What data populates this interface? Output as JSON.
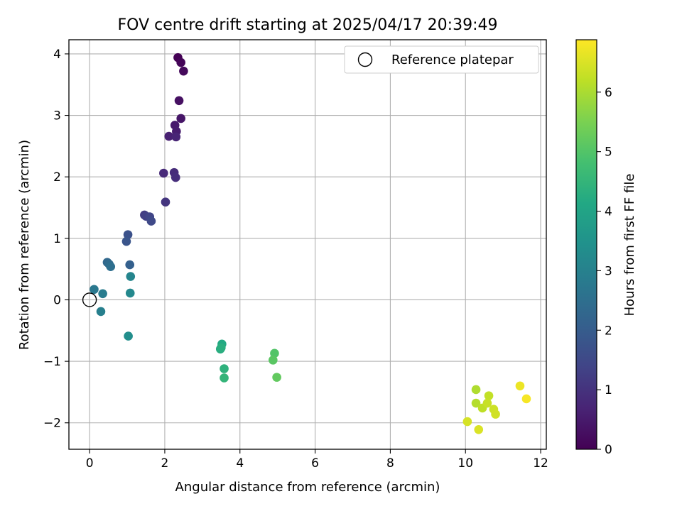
{
  "chart_data": {
    "type": "scatter",
    "title": "FOV centre drift starting at 2025/04/17 20:39:49",
    "xlabel": "Angular distance from reference (arcmin)",
    "ylabel": "Rotation from reference (arcmin)",
    "xlim": [
      -0.55,
      12.15
    ],
    "ylim": [
      -2.43,
      4.23
    ],
    "xticks": [
      0,
      2,
      4,
      6,
      8,
      10,
      12
    ],
    "yticks": [
      -2,
      -1,
      0,
      1,
      2,
      3,
      4
    ],
    "x_tick_labels": [
      "0",
      "2",
      "4",
      "6",
      "8",
      "10",
      "12"
    ],
    "y_tick_labels": [
      "−2",
      "−1",
      "0",
      "1",
      "2",
      "3",
      "4"
    ],
    "grid": true,
    "legend": {
      "placement": "upper-right",
      "entries": [
        "Reference platepar"
      ]
    },
    "reference_point": {
      "x": 0,
      "y": 0,
      "label": "Reference platepar"
    },
    "colorbar": {
      "label": "Hours from first FF file",
      "colormap": "viridis",
      "range": [
        0,
        6.88
      ],
      "ticks": [
        0,
        1,
        2,
        3,
        4,
        5,
        6
      ],
      "tick_labels": [
        "0",
        "1",
        "2",
        "3",
        "4",
        "5",
        "6"
      ]
    },
    "points": [
      {
        "x": 2.35,
        "y": 3.94,
        "c": 0.0
      },
      {
        "x": 2.43,
        "y": 3.86,
        "c": 0.08
      },
      {
        "x": 2.5,
        "y": 3.72,
        "c": 0.15
      },
      {
        "x": 2.38,
        "y": 3.24,
        "c": 0.3
      },
      {
        "x": 2.43,
        "y": 2.95,
        "c": 0.4
      },
      {
        "x": 2.27,
        "y": 2.84,
        "c": 0.5
      },
      {
        "x": 2.31,
        "y": 2.74,
        "c": 0.55
      },
      {
        "x": 2.11,
        "y": 2.66,
        "c": 0.62
      },
      {
        "x": 2.3,
        "y": 2.65,
        "c": 0.7
      },
      {
        "x": 1.97,
        "y": 2.06,
        "c": 0.8
      },
      {
        "x": 2.25,
        "y": 2.07,
        "c": 0.85
      },
      {
        "x": 2.29,
        "y": 1.99,
        "c": 0.9
      },
      {
        "x": 2.02,
        "y": 1.59,
        "c": 1.05
      },
      {
        "x": 1.46,
        "y": 1.38,
        "c": 1.2
      },
      {
        "x": 1.5,
        "y": 1.36,
        "c": 1.3
      },
      {
        "x": 1.6,
        "y": 1.35,
        "c": 1.4
      },
      {
        "x": 1.64,
        "y": 1.28,
        "c": 1.5
      },
      {
        "x": 1.02,
        "y": 1.06,
        "c": 1.7
      },
      {
        "x": 0.98,
        "y": 0.95,
        "c": 1.8
      },
      {
        "x": 1.07,
        "y": 0.57,
        "c": 2.1
      },
      {
        "x": 0.47,
        "y": 0.61,
        "c": 2.3
      },
      {
        "x": 0.52,
        "y": 0.58,
        "c": 2.4
      },
      {
        "x": 0.56,
        "y": 0.54,
        "c": 2.5
      },
      {
        "x": 0.12,
        "y": 0.17,
        "c": 2.75
      },
      {
        "x": 0.35,
        "y": 0.1,
        "c": 2.85
      },
      {
        "x": 0.3,
        "y": -0.19,
        "c": 2.95
      },
      {
        "x": 1.09,
        "y": 0.38,
        "c": 3.1
      },
      {
        "x": 1.08,
        "y": 0.11,
        "c": 3.2
      },
      {
        "x": 1.03,
        "y": -0.59,
        "c": 3.35
      },
      {
        "x": 3.52,
        "y": -0.72,
        "c": 4.15
      },
      {
        "x": 3.48,
        "y": -0.8,
        "c": 4.25
      },
      {
        "x": 3.5,
        "y": -0.78,
        "c": 4.3
      },
      {
        "x": 3.58,
        "y": -1.12,
        "c": 4.4
      },
      {
        "x": 3.58,
        "y": -1.27,
        "c": 4.5
      },
      {
        "x": 4.92,
        "y": -0.87,
        "c": 5.0
      },
      {
        "x": 4.88,
        "y": -0.98,
        "c": 5.1
      },
      {
        "x": 4.98,
        "y": -1.26,
        "c": 5.2
      },
      {
        "x": 10.28,
        "y": -1.46,
        "c": 6.05
      },
      {
        "x": 10.28,
        "y": -1.68,
        "c": 6.1
      },
      {
        "x": 10.45,
        "y": -1.76,
        "c": 6.2
      },
      {
        "x": 10.62,
        "y": -1.56,
        "c": 6.25
      },
      {
        "x": 10.58,
        "y": -1.68,
        "c": 6.3
      },
      {
        "x": 10.75,
        "y": -1.78,
        "c": 6.35
      },
      {
        "x": 10.8,
        "y": -1.86,
        "c": 6.4
      },
      {
        "x": 10.05,
        "y": -1.98,
        "c": 6.45
      },
      {
        "x": 10.35,
        "y": -2.11,
        "c": 6.5
      },
      {
        "x": 11.45,
        "y": -1.4,
        "c": 6.7
      },
      {
        "x": 11.62,
        "y": -1.61,
        "c": 6.8
      }
    ]
  }
}
